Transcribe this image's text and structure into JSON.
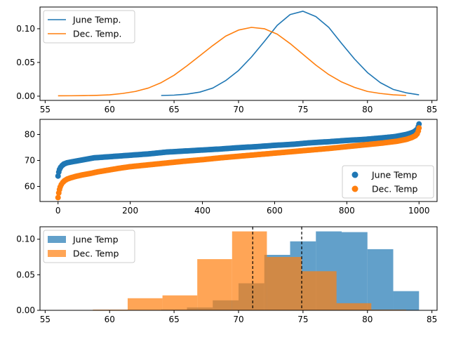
{
  "chart_data": [
    {
      "type": "line",
      "xlim": [
        54.6,
        85.4
      ],
      "ylim": [
        -0.0063,
        0.1322
      ],
      "xticks": [
        55,
        60,
        65,
        70,
        75,
        80,
        85
      ],
      "yticks": [
        0.0,
        0.05,
        0.1
      ],
      "ytick_labels": [
        "0.00",
        "0.05",
        "0.10"
      ],
      "legend_loc": "upper left",
      "series": [
        {
          "name": "June Temp.",
          "color": "#1f77b4",
          "x": [
            64,
            65,
            66,
            67,
            68,
            69,
            70,
            71,
            72,
            73,
            74,
            75,
            76,
            77,
            78,
            79,
            80,
            81,
            82,
            83,
            84
          ],
          "y": [
            0.001,
            0.0015,
            0.003,
            0.006,
            0.012,
            0.023,
            0.038,
            0.058,
            0.081,
            0.105,
            0.121,
            0.126,
            0.118,
            0.102,
            0.078,
            0.055,
            0.035,
            0.02,
            0.01,
            0.005,
            0.002
          ]
        },
        {
          "name": "Dec. Temp.",
          "color": "#ff7f0e",
          "x": [
            56,
            57,
            58,
            59,
            60,
            61,
            62,
            63,
            64,
            65,
            66,
            67,
            68,
            69,
            70,
            71,
            72,
            73,
            74,
            75,
            76,
            77,
            78,
            79,
            80,
            81,
            82,
            83
          ],
          "y": [
            0.0005,
            0.0006,
            0.0008,
            0.0012,
            0.002,
            0.004,
            0.007,
            0.012,
            0.02,
            0.031,
            0.045,
            0.06,
            0.075,
            0.089,
            0.098,
            0.102,
            0.1,
            0.092,
            0.078,
            0.062,
            0.046,
            0.032,
            0.021,
            0.013,
            0.007,
            0.004,
            0.002,
            0.001
          ]
        }
      ]
    },
    {
      "type": "scatter",
      "xlim": [
        -50,
        1050
      ],
      "ylim": [
        54.2,
        85.8
      ],
      "xticks": [
        0,
        200,
        400,
        600,
        800,
        1000
      ],
      "yticks": [
        60,
        70,
        80
      ],
      "legend_loc": "lower right",
      "marker_size": 7,
      "series": [
        {
          "name": "June Temp",
          "color": "#1f77b4",
          "x": [
            0,
            2,
            4,
            7,
            11,
            16,
            25,
            40,
            60,
            80,
            100,
            150,
            200,
            250,
            300,
            350,
            400,
            450,
            500,
            550,
            600,
            650,
            700,
            750,
            800,
            850,
            900,
            930,
            950,
            965,
            975,
            985,
            990,
            995,
            998,
            1000
          ],
          "y": [
            64,
            65.5,
            66.5,
            67.3,
            68,
            68.6,
            69.1,
            69.5,
            70,
            70.5,
            71,
            71.5,
            72,
            72.5,
            73.2,
            73.6,
            74,
            74.4,
            74.9,
            75.3,
            75.8,
            76.2,
            76.8,
            77.2,
            77.7,
            78.1,
            78.7,
            79.1,
            79.6,
            80,
            80.4,
            80.9,
            81.4,
            82,
            83,
            84
          ]
        },
        {
          "name": "Dec. Temp",
          "color": "#ff7f0e",
          "x": [
            0,
            2,
            4,
            6,
            9,
            13,
            18,
            25,
            35,
            50,
            70,
            90,
            110,
            140,
            170,
            200,
            250,
            300,
            350,
            400,
            450,
            500,
            550,
            600,
            650,
            700,
            750,
            800,
            850,
            900,
            940,
            965,
            980,
            990,
            995,
            998,
            1000
          ],
          "y": [
            55.7,
            57.5,
            58.8,
            59.8,
            60.7,
            61.5,
            62.2,
            62.8,
            63.3,
            63.9,
            64.5,
            65,
            65.6,
            66.3,
            67,
            67.6,
            68.3,
            69,
            69.7,
            70.3,
            71,
            71.6,
            72.2,
            72.8,
            73.4,
            74,
            74.6,
            75.3,
            76,
            76.7,
            77.4,
            78.1,
            78.8,
            79.5,
            80.3,
            81.3,
            82.5
          ]
        }
      ]
    },
    {
      "type": "histogram",
      "xlim": [
        54.6,
        85.4
      ],
      "ylim": [
        0,
        0.1175
      ],
      "xticks": [
        55,
        60,
        65,
        70,
        75,
        80,
        85
      ],
      "yticks": [
        0.0,
        0.05,
        0.1
      ],
      "ytick_labels": [
        "0.00",
        "0.05",
        "0.10"
      ],
      "legend_loc": "upper left",
      "vlines": [
        71.1,
        74.9
      ],
      "series": [
        {
          "name": "June Temp",
          "color": "#1f77b4",
          "bins": [
            64,
            66,
            68,
            70,
            72,
            74,
            76,
            78,
            80,
            82,
            84
          ],
          "values": [
            0.001,
            0.004,
            0.014,
            0.038,
            0.078,
            0.097,
            0.111,
            0.11,
            0.086,
            0.027
          ]
        },
        {
          "name": "Dec. Temp",
          "color": "#ff7f0e",
          "bins": [
            56,
            58.7,
            61.4,
            64.1,
            66.8,
            69.5,
            72.2,
            74.9,
            77.6,
            80.3,
            83
          ],
          "values": [
            0.0005,
            0.001,
            0.017,
            0.021,
            0.072,
            0.111,
            0.075,
            0.055,
            0.01,
            0.001
          ]
        }
      ]
    }
  ]
}
